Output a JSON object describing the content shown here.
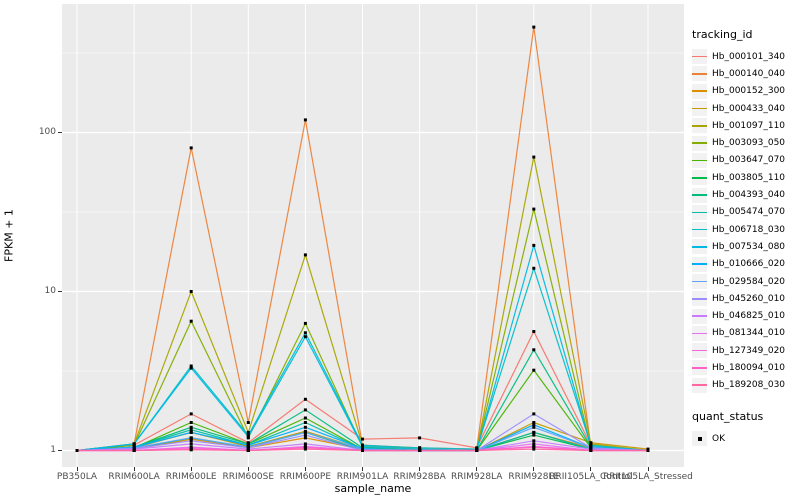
{
  "figure": {
    "panel_bg": "#EBEBEB",
    "grid_color": "#FFFFFF",
    "axis_text_color": "#4D4D4D",
    "tick_mark_color": "#333333",
    "legend_key_bg": "#F2F2F2"
  },
  "chart_data": {
    "type": "line",
    "title": "",
    "xlabel": "sample_name",
    "ylabel": "FPKM + 1",
    "y_scale": "log10",
    "grid": true,
    "legend_position": "right",
    "y_ticks": [
      1,
      10,
      100
    ],
    "y_minor_gridlines": [
      3.162,
      31.62,
      316.2
    ],
    "ylim": [
      1,
      640
    ],
    "categories": [
      "PB350LA",
      "RRIM600LA",
      "RRIM600LE",
      "RRIM600SE",
      "RRIM600PE",
      "RRIM901LA",
      "RRIM928BA",
      "RRIM928LA",
      "RRIM928LE",
      "RRII105LA_Control",
      "RRII105LA_Stressed"
    ],
    "marker": {
      "shape": "square",
      "color": "#000000",
      "size": 3
    },
    "legend_title": "tracking_id",
    "quant_legend": {
      "title": "quant_status",
      "items": [
        {
          "label": "OK",
          "marker": "black-square"
        }
      ]
    },
    "series": [
      {
        "name": "Hb_000101_340",
        "color": "#F8766D",
        "values": [
          1.0,
          1.08,
          1.7,
          1.12,
          2.1,
          1.18,
          1.2,
          1.04,
          5.6,
          1.08,
          1.0
        ]
      },
      {
        "name": "Hb_000140_040",
        "color": "#EC8239",
        "values": [
          1.0,
          1.1,
          80,
          1.5,
          120,
          1.08,
          1.04,
          1.02,
          460,
          1.05,
          1.0
        ]
      },
      {
        "name": "Hb_000152_300",
        "color": "#DB8E00",
        "values": [
          1.0,
          1.02,
          1.18,
          1.04,
          1.2,
          1.02,
          1.0,
          1.0,
          1.3,
          1.04,
          1.0
        ]
      },
      {
        "name": "Hb_000433_040",
        "color": "#C69900",
        "values": [
          1.0,
          1.04,
          1.3,
          1.06,
          1.32,
          1.02,
          1.0,
          1.0,
          1.5,
          1.12,
          1.02
        ]
      },
      {
        "name": "Hb_001097_110",
        "color": "#AAA400",
        "values": [
          1.0,
          1.1,
          10,
          1.3,
          17,
          1.08,
          1.02,
          1.0,
          70,
          1.1,
          1.0
        ]
      },
      {
        "name": "Hb_003093_050",
        "color": "#83AD00",
        "values": [
          1.0,
          1.08,
          6.5,
          1.2,
          6.3,
          1.05,
          1.0,
          1.0,
          33,
          1.05,
          1.0
        ]
      },
      {
        "name": "Hb_003647_070",
        "color": "#45B500",
        "values": [
          1.0,
          1.04,
          1.5,
          1.1,
          1.6,
          1.02,
          1.0,
          1.0,
          3.2,
          1.04,
          1.0
        ]
      },
      {
        "name": "Hb_003805_110",
        "color": "#00BB4B",
        "values": [
          1.0,
          1.03,
          1.2,
          1.05,
          1.3,
          1.0,
          1.0,
          1.0,
          1.25,
          1.02,
          1.0
        ]
      },
      {
        "name": "Hb_004393_040",
        "color": "#00BD7E",
        "values": [
          1.0,
          1.05,
          1.4,
          1.1,
          1.8,
          1.04,
          1.0,
          1.0,
          4.3,
          1.05,
          1.0
        ]
      },
      {
        "name": "Hb_005474_070",
        "color": "#00BFA6",
        "values": [
          1.0,
          1.05,
          1.35,
          1.08,
          1.5,
          1.02,
          1.0,
          1.0,
          1.3,
          1.02,
          1.0
        ]
      },
      {
        "name": "Hb_006718_030",
        "color": "#00BFC8",
        "values": [
          1.0,
          1.1,
          3.4,
          1.25,
          5.5,
          1.08,
          1.04,
          1.02,
          14,
          1.08,
          1.0
        ]
      },
      {
        "name": "Hb_007534_080",
        "color": "#00B9E3",
        "values": [
          1.0,
          1.1,
          3.3,
          1.22,
          5.2,
          1.06,
          1.02,
          1.0,
          19.5,
          1.06,
          1.0
        ]
      },
      {
        "name": "Hb_010666_020",
        "color": "#00AFF9",
        "values": [
          1.0,
          1.05,
          1.3,
          1.08,
          1.4,
          1.03,
          1.0,
          1.0,
          1.45,
          1.04,
          1.0
        ]
      },
      {
        "name": "Hb_029584_020",
        "color": "#5EA6FF",
        "values": [
          1.0,
          1.04,
          1.2,
          1.05,
          1.3,
          1.02,
          1.0,
          1.0,
          1.4,
          1.04,
          1.0
        ]
      },
      {
        "name": "Hb_045260_010",
        "color": "#9C8DFF",
        "values": [
          1.0,
          1.03,
          1.15,
          1.04,
          1.25,
          1.0,
          1.0,
          1.0,
          1.7,
          1.04,
          1.0
        ]
      },
      {
        "name": "Hb_046825_010",
        "color": "#C77CFF",
        "values": [
          1.0,
          1.02,
          1.1,
          1.02,
          1.1,
          1.0,
          1.0,
          1.0,
          1.15,
          1.02,
          1.0
        ]
      },
      {
        "name": "Hb_081344_010",
        "color": "#E570F1",
        "values": [
          1.0,
          1.0,
          1.05,
          1.0,
          1.06,
          1.0,
          1.0,
          1.0,
          1.1,
          1.0,
          1.0
        ]
      },
      {
        "name": "Hb_127349_020",
        "color": "#F863DF",
        "values": [
          1.0,
          1.0,
          1.04,
          1.0,
          1.05,
          1.0,
          1.0,
          1.0,
          1.06,
          1.0,
          1.0
        ]
      },
      {
        "name": "Hb_180094_010",
        "color": "#FF61C7",
        "values": [
          1.0,
          1.0,
          1.02,
          1.0,
          1.04,
          1.0,
          1.0,
          1.0,
          1.05,
          1.0,
          1.0
        ]
      },
      {
        "name": "Hb_189208_030",
        "color": "#FF689E",
        "values": [
          1.0,
          1.0,
          1.01,
          1.0,
          1.02,
          1.0,
          1.0,
          1.0,
          1.02,
          1.0,
          1.0
        ]
      }
    ]
  }
}
